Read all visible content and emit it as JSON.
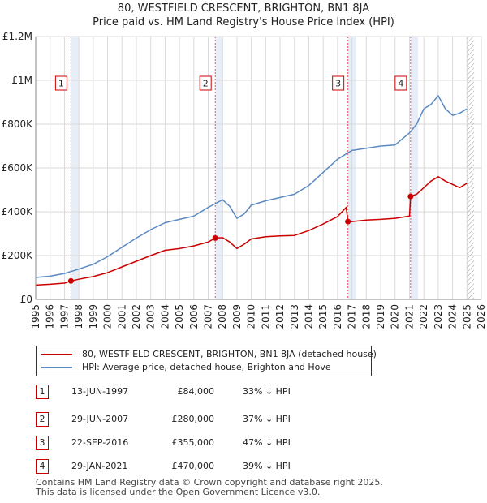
{
  "title_line1": "80, WESTFIELD CRESCENT, BRIGHTON, BN1 8JA",
  "title_line2": "Price paid vs. HM Land Registry's House Price Index (HPI)",
  "colors": {
    "property": "#cc0000",
    "hpi": "#5b8ac2",
    "shade": "#e8eef8",
    "grid": "#d9d9d9"
  },
  "legend": {
    "property_label": "80, WESTFIELD CRESCENT, BRIGHTON, BN1 8JA (detached house)",
    "hpi_label": "HPI: Average price, detached house, Brighton and Hove"
  },
  "transactions": [
    {
      "num": "1",
      "date": "13-JUN-1997",
      "price": "£84,000",
      "hpi": "33% ↓ HPI"
    },
    {
      "num": "2",
      "date": "29-JUN-2007",
      "price": "£280,000",
      "hpi": "37% ↓ HPI"
    },
    {
      "num": "3",
      "date": "22-SEP-2016",
      "price": "£355,000",
      "hpi": "47% ↓ HPI"
    },
    {
      "num": "4",
      "date": "29-JAN-2021",
      "price": "£470,000",
      "hpi": "39% ↓ HPI"
    }
  ],
  "footer_line1": "Contains HM Land Registry data © Crown copyright and database right 2025.",
  "footer_line2": "This data is licensed under the Open Government Licence v3.0.",
  "chart_data": {
    "type": "line",
    "xlim": [
      1995,
      2026
    ],
    "ylim": [
      0,
      1200000
    ],
    "y_ticks": [
      0,
      200000,
      400000,
      600000,
      800000,
      1000000,
      1200000
    ],
    "y_tick_labels": [
      "£0",
      "£200K",
      "£400K",
      "£600K",
      "£800K",
      "£1M",
      "£1.2M"
    ],
    "x_ticks": [
      1995,
      1996,
      1997,
      1998,
      1999,
      2000,
      2001,
      2002,
      2003,
      2004,
      2005,
      2006,
      2007,
      2008,
      2009,
      2010,
      2011,
      2012,
      2013,
      2014,
      2015,
      2016,
      2017,
      2018,
      2019,
      2020,
      2021,
      2022,
      2023,
      2024,
      2025,
      2026
    ],
    "x_tick_labels": [
      "1995",
      "1996",
      "1997",
      "1998",
      "1999",
      "2000",
      "2001",
      "2002",
      "2003",
      "2004",
      "2005",
      "2006",
      "2007",
      "2008",
      "2009",
      "2010",
      "2011",
      "2012",
      "2013",
      "2014",
      "2015",
      "2016",
      "2017",
      "2018",
      "2019",
      "2020",
      "2021",
      "2022",
      "2023",
      "2024",
      "2025",
      "2026"
    ],
    "shaded_periods": [
      [
        1997.45,
        1998.0
      ],
      [
        2007.49,
        2008.0
      ],
      [
        2016.72,
        2017.3
      ],
      [
        2021.08,
        2021.6
      ]
    ],
    "hatched_from": 2025.0,
    "markers": [
      {
        "label": "1",
        "x": 1997.45,
        "y": 84000
      },
      {
        "label": "2",
        "x": 2007.49,
        "y": 280000
      },
      {
        "label": "3",
        "x": 2016.72,
        "y": 355000
      },
      {
        "label": "4",
        "x": 2021.08,
        "y": 470000
      }
    ],
    "series": [
      {
        "name": "80, WESTFIELD CRESCENT, BRIGHTON, BN1 8JA (detached house)",
        "x": [
          1995,
          1996,
          1997,
          1997.45,
          1998,
          1999,
          2000,
          2001,
          2002,
          2003,
          2004,
          2005,
          2006,
          2007,
          2007.49,
          2008,
          2008.5,
          2009,
          2009.5,
          2010,
          2011,
          2012,
          2013,
          2014,
          2015,
          2016,
          2016.6,
          2016.72,
          2017,
          2018,
          2019,
          2020,
          2021,
          2021.08,
          2021.5,
          2022,
          2022.5,
          2023,
          2023.5,
          2024,
          2024.5,
          2025
        ],
        "values": [
          65000,
          69000,
          74000,
          84000,
          92000,
          104000,
          122000,
          148000,
          174000,
          200000,
          224000,
          232000,
          244000,
          262000,
          280000,
          282000,
          262000,
          232000,
          252000,
          276000,
          286000,
          290000,
          292000,
          314000,
          344000,
          378000,
          420000,
          355000,
          355000,
          362000,
          365000,
          370000,
          380000,
          470000,
          480000,
          510000,
          540000,
          560000,
          540000,
          525000,
          510000,
          530000
        ]
      },
      {
        "name": "HPI: Average price, detached house, Brighton and Hove",
        "x": [
          1995,
          1996,
          1997,
          1998,
          1999,
          2000,
          2001,
          2002,
          2003,
          2004,
          2005,
          2006,
          2007,
          2008,
          2008.5,
          2009,
          2009.5,
          2010,
          2011,
          2012,
          2013,
          2014,
          2015,
          2016,
          2017,
          2018,
          2019,
          2020,
          2021,
          2021.5,
          2022,
          2022.5,
          2023,
          2023.5,
          2024,
          2024.5,
          2025
        ],
        "values": [
          100000,
          106000,
          118000,
          138000,
          160000,
          195000,
          238000,
          280000,
          318000,
          350000,
          365000,
          380000,
          420000,
          455000,
          425000,
          370000,
          390000,
          430000,
          450000,
          465000,
          480000,
          520000,
          580000,
          640000,
          680000,
          690000,
          700000,
          705000,
          760000,
          800000,
          870000,
          890000,
          930000,
          870000,
          840000,
          850000,
          870000
        ]
      }
    ]
  }
}
